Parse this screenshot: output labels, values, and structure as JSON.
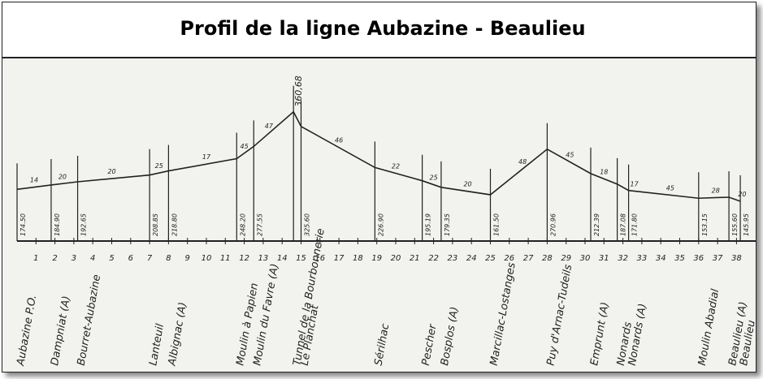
{
  "chart_data": {
    "type": "line",
    "title": "Profil de la ligne Aubazine - Beaulieu",
    "categories": [
      "Aubazine P.O.",
      "Dampniat (A)",
      "Bourret-Aubazine",
      "Lanteuil",
      "Albignac (A)",
      "Moulin à Papien",
      "Moulin du Favre (A)",
      "Tunnel de la Bourbonnerie",
      "Le Planchat",
      "Sérilhac",
      "Pescher",
      "Bosplos (A)",
      "Marcillac-Lostanges",
      "Puy d'Arnac-Tudeils",
      "Emprunt (A)",
      "Nonards",
      "Nonards (A)",
      "Moulin Abadial",
      "Beaulieu (A)",
      "Beaulieu"
    ],
    "x": [
      0,
      1.8,
      3.2,
      7,
      8,
      11.6,
      12.5,
      14.6,
      15,
      18.9,
      21.4,
      22.4,
      25,
      28,
      30.3,
      31.7,
      32.3,
      36,
      37.6,
      38.2
    ],
    "values": [
      174.5,
      184.9,
      192.65,
      208.85,
      218.8,
      248.2,
      277.55,
      360.68,
      325.6,
      226.9,
      195.19,
      179.35,
      161.5,
      270.96,
      212.39,
      187.08,
      171.8,
      153.15,
      155.6,
      145.95
    ],
    "value_labels": [
      "174.50",
      "184.90",
      "192.65",
      "208.85",
      "218.80",
      "248.20",
      "277.55",
      "360,68",
      "325.60",
      "226.90",
      "195.19",
      "179.35",
      "161.50",
      "270.96",
      "212.39",
      "187.08",
      "171.80",
      "153.15",
      "155.60",
      "145.95"
    ],
    "gradient_labels": [
      {
        "km": 0.9,
        "label": "14"
      },
      {
        "km": 2.4,
        "label": "20"
      },
      {
        "km": 5,
        "label": "20"
      },
      {
        "km": 7.5,
        "label": "25"
      },
      {
        "km": 10,
        "label": "17"
      },
      {
        "km": 12,
        "label": "45"
      },
      {
        "km": 13.3,
        "label": "47"
      },
      {
        "km": 17,
        "label": "46"
      },
      {
        "km": 20,
        "label": "22"
      },
      {
        "km": 22,
        "label": "25"
      },
      {
        "km": 23.8,
        "label": "20"
      },
      {
        "km": 26.7,
        "label": "48"
      },
      {
        "km": 29.2,
        "label": "45"
      },
      {
        "km": 31,
        "label": "18"
      },
      {
        "km": 32.6,
        "label": "17"
      },
      {
        "km": 34.5,
        "label": "45"
      },
      {
        "km": 36.9,
        "label": "28"
      },
      {
        "km": 38.3,
        "label": "20"
      }
    ],
    "xlim": [
      0,
      38.5
    ],
    "ylim": [
      140,
      370
    ],
    "xticks": [
      1,
      2,
      3,
      4,
      5,
      6,
      7,
      8,
      9,
      10,
      11,
      12,
      13,
      14,
      15,
      16,
      17,
      18,
      19,
      20,
      21,
      22,
      23,
      24,
      25,
      26,
      27,
      28,
      29,
      30,
      31,
      32,
      33,
      34,
      35,
      36,
      37,
      38
    ],
    "color": "#222222"
  }
}
